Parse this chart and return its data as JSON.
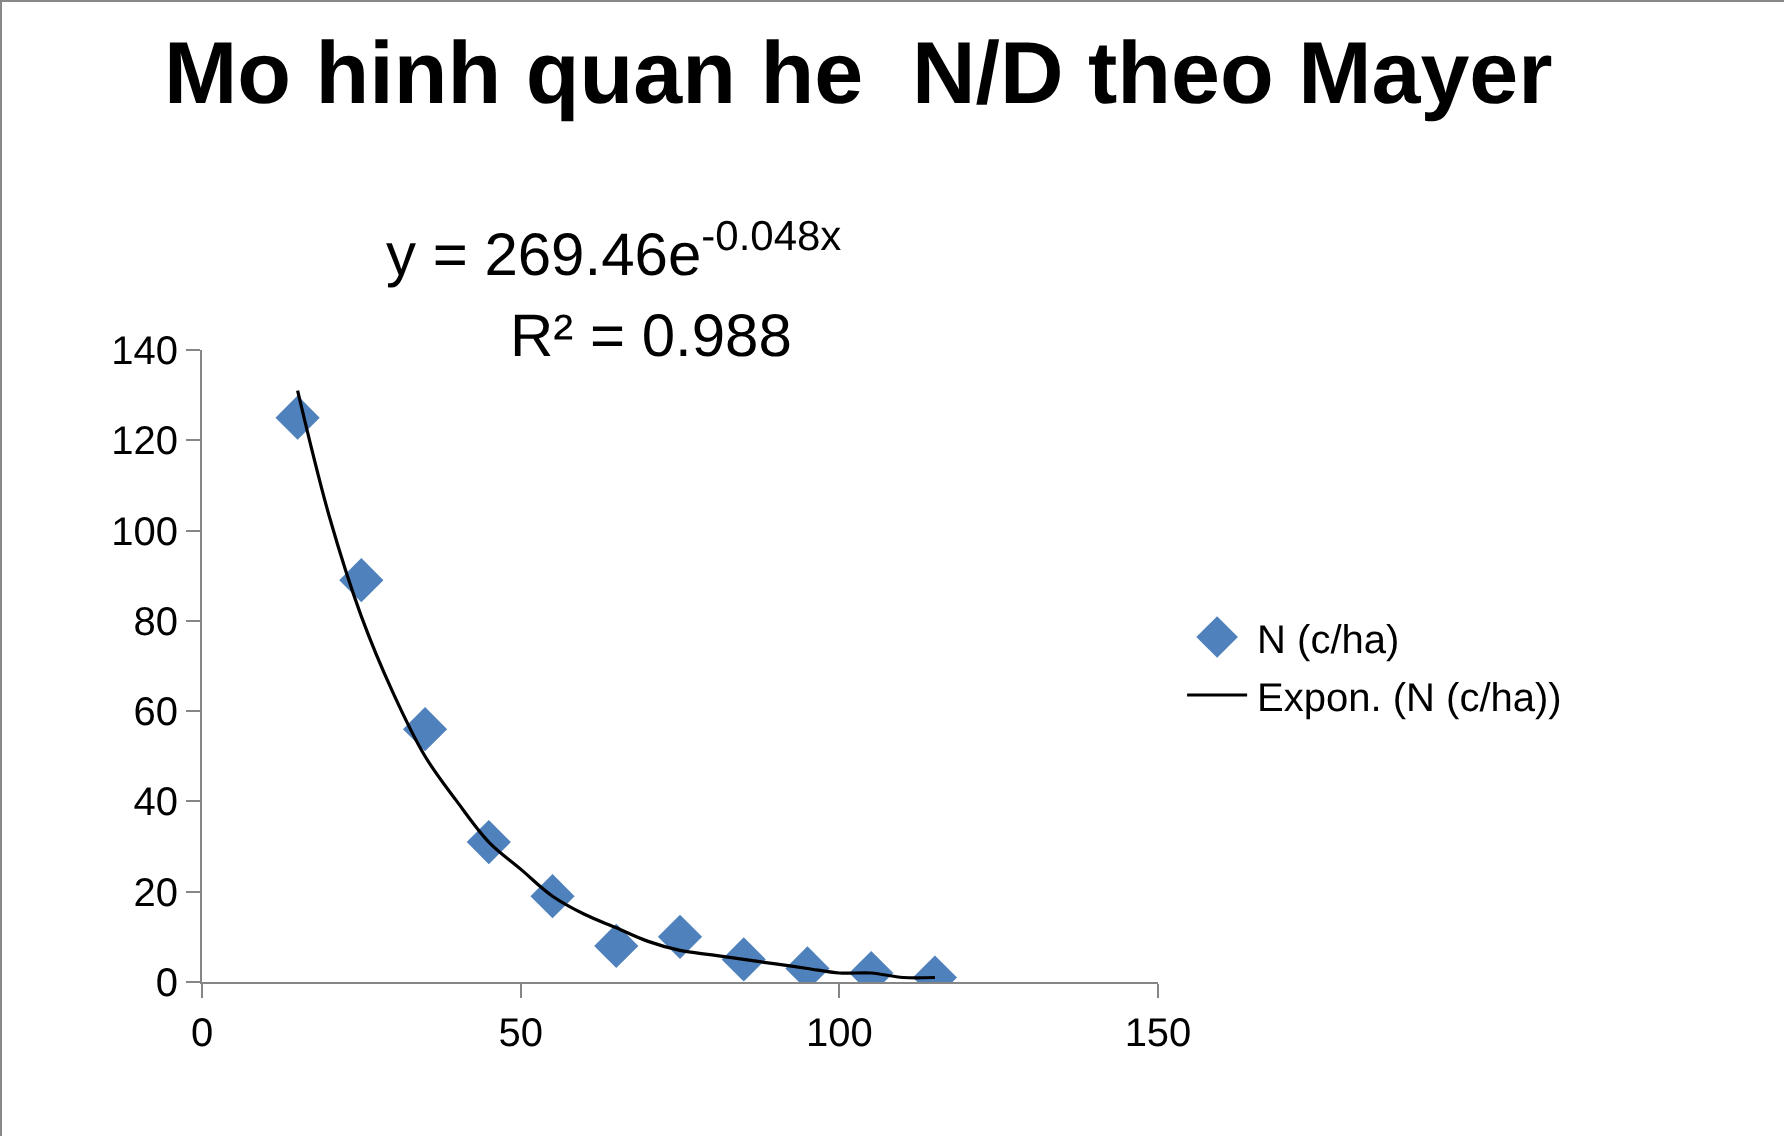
{
  "chart_data": {
    "type": "scatter",
    "title": "Mo hinh quan he  N/D theo Mayer",
    "annotations": [
      "y = 269.46e$^{-0.048x}$",
      "R² = 0.988"
    ],
    "xlim": [
      0,
      150
    ],
    "xticks": [
      0,
      50,
      100,
      150
    ],
    "ylim": [
      0,
      140
    ],
    "yticks": [
      0,
      20,
      40,
      60,
      80,
      100,
      120,
      140
    ],
    "grid": false,
    "legend": "right",
    "marker": "diamond",
    "series": [
      {
        "name": "N (c/ha)",
        "color": "#4f81bd",
        "x": [
          15,
          25,
          35,
          45,
          55,
          65,
          75,
          85,
          95,
          105,
          115
        ],
        "values": [
          125,
          89,
          56,
          31,
          19,
          8,
          10,
          5,
          3,
          2,
          1
        ]
      },
      {
        "name": "Expon. (N (c/ha))",
        "type": "line",
        "color": "#000000",
        "line_style": "solid",
        "marker": "none",
        "x": [
          15,
          20,
          25,
          30,
          35,
          40,
          45,
          50,
          55,
          60,
          65,
          70,
          75,
          80,
          85,
          90,
          95,
          100,
          105,
          110,
          115
        ],
        "values": [
          131,
          103,
          81,
          64,
          50,
          40,
          31,
          25,
          19,
          15,
          12,
          9,
          7,
          6,
          5,
          4,
          3,
          2,
          2,
          1,
          1
        ]
      }
    ]
  }
}
